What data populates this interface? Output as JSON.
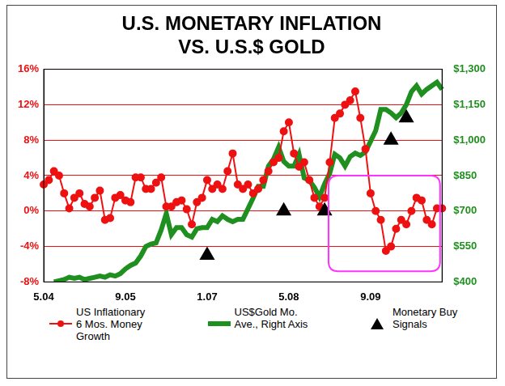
{
  "chart_data": {
    "type": "line",
    "title": [
      "U.S. MONETARY INFLATION",
      "VS. U.S.$ GOLD"
    ],
    "categories": [
      "5.04",
      null,
      null,
      null,
      null,
      null,
      null,
      null,
      null,
      null,
      null,
      null,
      null,
      null,
      null,
      null,
      "9.05",
      null,
      null,
      null,
      null,
      null,
      null,
      null,
      null,
      null,
      null,
      null,
      null,
      null,
      null,
      null,
      "1.07",
      null,
      null,
      null,
      null,
      null,
      null,
      null,
      null,
      null,
      null,
      null,
      null,
      null,
      null,
      null,
      "5.08",
      null,
      null,
      null,
      null,
      null,
      null,
      null,
      null,
      null,
      null,
      null,
      null,
      null,
      null,
      null,
      "9.09",
      null,
      null,
      null,
      null,
      null,
      null,
      null,
      null,
      null,
      null,
      null,
      null,
      null,
      null
    ],
    "series": [
      {
        "name": "US Inflationary 6 Mos. Money Growth",
        "color": "#ee1111",
        "marker": "circle",
        "line_style": "solid",
        "values": [
          3,
          3.5,
          4.5,
          4,
          2,
          0.3,
          1.5,
          2,
          0.8,
          0.5,
          1.5,
          2.3,
          -1,
          -0.8,
          1.5,
          1.8,
          1.2,
          1,
          3.8,
          3.8,
          2.5,
          2.5,
          3.2,
          3.8,
          0.5,
          0.5,
          1,
          1.2,
          0.2,
          -1.5,
          1,
          1.5,
          3.5,
          2.5,
          3,
          2.5,
          4.5,
          6.5,
          3,
          2.5,
          3,
          2,
          2.5,
          3.5,
          4.5,
          5.5,
          6,
          9,
          10,
          6.5,
          5,
          5.5,
          3.5,
          1.5,
          0.5,
          1.5,
          5.5,
          10.5,
          11,
          12,
          12.5,
          13.5,
          10.5,
          7,
          2,
          0,
          -1,
          -4.5,
          -4,
          -2,
          -1,
          -1.5,
          0,
          1.5,
          1.2,
          -1,
          -1.5,
          0.3,
          0.3
        ]
      },
      {
        "name": "US$Gold Mo. Ave., Right Axis",
        "color": "#1f8f1f",
        "marker": "none",
        "line_style": "solid",
        "axis": "y2",
        "values": [
          null,
          null,
          400,
          405,
          410,
          420,
          415,
          420,
          410,
          415,
          420,
          425,
          420,
          430,
          425,
          435,
          455,
          470,
          480,
          510,
          550,
          560,
          565,
          620,
          690,
          600,
          630,
          630,
          600,
          590,
          625,
          630,
          630,
          665,
          655,
          680,
          665,
          655,
          665,
          665,
          710,
          755,
          805,
          805,
          890,
          920,
          970,
          910,
          890,
          890,
          940,
          840,
          830,
          800,
          760,
          815,
          860,
          940,
          925,
          890,
          930,
          945,
          935,
          950,
          995,
          1040,
          1130,
          1130,
          1115,
          1095,
          1115,
          1150,
          1205,
          1230,
          1195,
          1215,
          1230,
          1245,
          1215
        ]
      },
      {
        "name": "Monetary Buy Signals",
        "color": "#000000",
        "marker": "triangle",
        "line_style": "none",
        "values": [
          null,
          null,
          null,
          null,
          null,
          null,
          null,
          null,
          null,
          null,
          null,
          null,
          null,
          null,
          null,
          null,
          null,
          null,
          null,
          null,
          null,
          null,
          null,
          null,
          null,
          null,
          null,
          null,
          null,
          null,
          null,
          null,
          -5,
          null,
          null,
          null,
          null,
          null,
          null,
          null,
          null,
          null,
          null,
          null,
          null,
          null,
          null,
          0,
          null,
          null,
          null,
          null,
          null,
          null,
          null,
          0,
          null,
          null,
          null,
          null,
          null,
          null,
          null,
          null,
          null,
          null,
          null,
          null,
          8,
          null,
          null,
          10.5,
          null,
          null,
          null,
          null,
          null,
          null,
          null
        ]
      }
    ],
    "ylim": [
      -8,
      16
    ],
    "yticks": [
      {
        "value": -8,
        "label": "-8%"
      },
      {
        "value": -4,
        "label": "-4%"
      },
      {
        "value": 0,
        "label": "0%"
      },
      {
        "value": 4,
        "label": "4%"
      },
      {
        "value": 8,
        "label": "8%"
      },
      {
        "value": 12,
        "label": "12%"
      },
      {
        "value": 16,
        "label": "16%"
      }
    ],
    "y2lim": [
      400,
      1300
    ],
    "y2ticks": [
      {
        "value": 400,
        "label": "$400"
      },
      {
        "value": 550,
        "label": "$550"
      },
      {
        "value": 700,
        "label": "$700"
      },
      {
        "value": 850,
        "label": "$850"
      },
      {
        "value": 1000,
        "label": "$1,000"
      },
      {
        "value": 1150,
        "label": "$1,150"
      },
      {
        "value": 1300,
        "label": "$1,300"
      }
    ],
    "grid": true,
    "legend": "bottom"
  }
}
